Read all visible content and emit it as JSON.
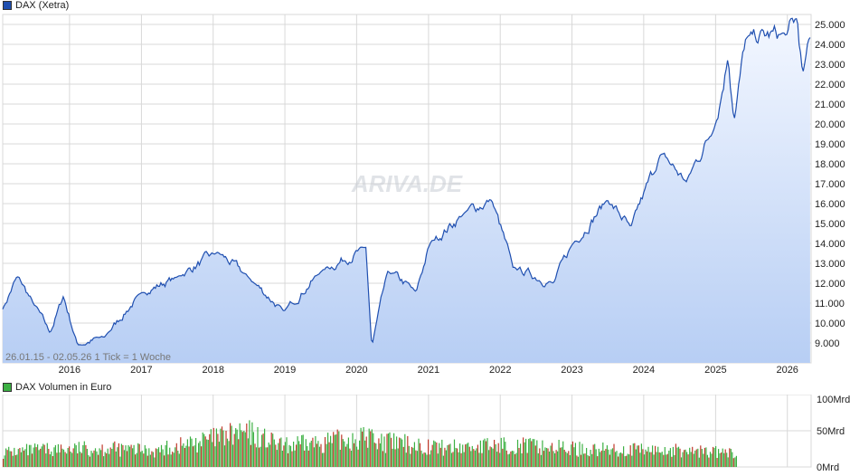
{
  "colors": {
    "price_line": "#1f4fb0",
    "fill_top": "#eef4ff",
    "fill_bottom": "#b9d0f5",
    "grid": "#d8d8d8",
    "vol_up": "#3cb043",
    "vol_down": "#c0392b",
    "price_legend": "#1f4fb0",
    "volume_legend": "#3cb043",
    "watermark": "#c8cdd5"
  },
  "legend": {
    "price": "DAX (Xetra)",
    "volume": "DAX Volumen in Euro"
  },
  "footer": "26.01.15 - 02.05.26   1 Tick = 1 Woche",
  "watermark": "ARIVA.DE",
  "chart_data": [
    {
      "type": "line",
      "series": [
        {
          "name": "DAX (Xetra)"
        }
      ],
      "x": [
        "2015-01-26",
        "2015-04-10",
        "2015-06-30",
        "2015-09-24",
        "2015-12-01",
        "2016-02-11",
        "2016-06-27",
        "2016-12-30",
        "2017-06-30",
        "2018-01-23",
        "2018-06-29",
        "2018-12-27",
        "2019-07-04",
        "2020-02-17",
        "2020-03-18",
        "2020-06-08",
        "2020-10-30",
        "2021-01-08",
        "2021-06-30",
        "2021-11-18",
        "2022-03-07",
        "2022-09-29",
        "2022-12-30",
        "2023-06-30",
        "2023-10-27",
        "2024-03-28",
        "2024-08-05",
        "2024-12-31",
        "2025-03-06",
        "2025-04-07",
        "2025-06-03",
        "2025-12-31",
        "2026-02-20",
        "2026-03-20",
        "2026-05-02"
      ],
      "values": [
        10700,
        12350,
        11000,
        9500,
        11350,
        8900,
        9300,
        11500,
        12300,
        13560,
        12300,
        10580,
        12600,
        13800,
        8800,
        12600,
        11550,
        14000,
        15500,
        16200,
        12800,
        12000,
        13900,
        16200,
        14800,
        18500,
        17100,
        20000,
        23400,
        20300,
        24300,
        24500,
        25300,
        22400,
        24400
      ],
      "yticks": [
        9000,
        10000,
        11000,
        12000,
        13000,
        14000,
        15000,
        16000,
        17000,
        18000,
        19000,
        20000,
        21000,
        22000,
        23000,
        24000,
        25000
      ],
      "ytick_labels": [
        "9.000",
        "10.000",
        "11.000",
        "12.000",
        "13.000",
        "14.000",
        "15.000",
        "16.000",
        "17.000",
        "18.000",
        "19.000",
        "20.000",
        "21.000",
        "22.000",
        "23.000",
        "24.000",
        "25.000"
      ],
      "xtick_labels": [
        "2016",
        "2017",
        "2018",
        "2019",
        "2020",
        "2021",
        "2022",
        "2023",
        "2024",
        "2025",
        "2026"
      ],
      "xticks": [
        "2016-01-01",
        "2017-01-01",
        "2018-01-01",
        "2019-01-01",
        "2020-01-01",
        "2021-01-01",
        "2022-01-01",
        "2023-01-01",
        "2024-01-01",
        "2025-01-01",
        "2026-01-01"
      ],
      "xlim": [
        "2015-01-26",
        "2026-05-02"
      ],
      "ylim": [
        8000,
        25500
      ],
      "grid": true
    },
    {
      "type": "bar",
      "series": [
        {
          "name": "DAX Volumen in Euro"
        }
      ],
      "x": [
        "2015-01-26",
        "2015-08-24",
        "2016-06-24",
        "2017-03-17",
        "2018-06-15",
        "2018-12-21",
        "2020-03-13",
        "2020-03-20",
        "2021-03-19",
        "2022-03-04",
        "2023-03-17",
        "2024-06-21",
        "2024-12-20",
        "2025-04-04",
        "2025-04-11"
      ],
      "values": [
        25,
        30,
        32,
        28,
        60,
        35,
        52,
        45,
        33,
        38,
        30,
        28,
        26,
        22,
        25
      ],
      "yticks": [
        0,
        50,
        100
      ],
      "ytick_labels": [
        "0Mrd",
        "50Mrd",
        "100Mrd"
      ],
      "ylim": [
        0,
        100
      ],
      "grid": true
    }
  ]
}
